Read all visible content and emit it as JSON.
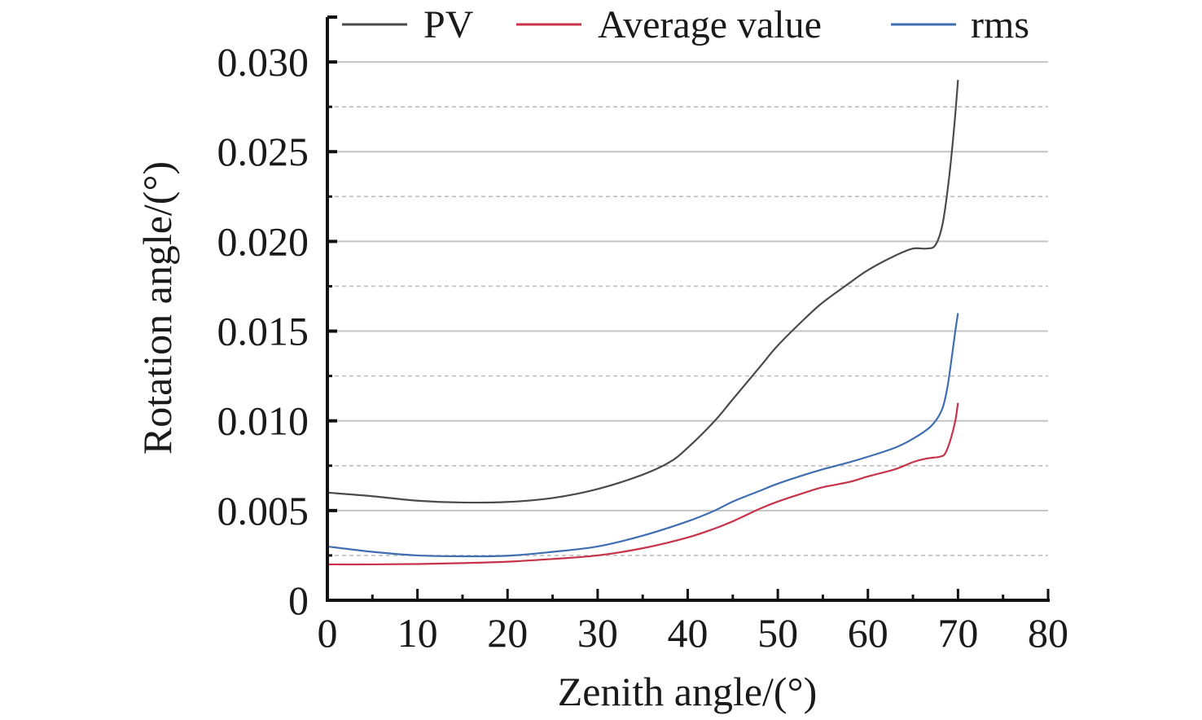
{
  "chart_data": {
    "type": "line",
    "title": "",
    "xlabel": "Zenith angle/(°)",
    "ylabel": "Rotation angle/(°)",
    "xlim": [
      0,
      80
    ],
    "ylim": [
      0,
      0.0325
    ],
    "xticks": [
      0,
      10,
      20,
      30,
      40,
      50,
      60,
      70,
      80
    ],
    "xtick_labels": [
      "0",
      "10",
      "20",
      "30",
      "40",
      "50",
      "60",
      "70",
      "80"
    ],
    "yticks": [
      0,
      0.005,
      0.01,
      0.015,
      0.02,
      0.025,
      0.03
    ],
    "ytick_labels": [
      "0",
      "0.005",
      "0.010",
      "0.015",
      "0.020",
      "0.025",
      "0.030"
    ],
    "y_minor_gridlines": [
      0.0025,
      0.0075,
      0.0125,
      0.0175,
      0.0225,
      0.0275
    ],
    "grid": true,
    "legend_position": "top",
    "series": [
      {
        "name": "PV",
        "color": "#4a4a4a",
        "x": [
          0,
          5,
          10,
          15,
          20,
          25,
          30,
          35,
          38,
          40,
          43,
          45,
          48,
          50,
          53,
          55,
          58,
          60,
          63,
          65,
          66.5,
          67.5,
          68.3,
          69,
          69.6,
          70
        ],
        "y": [
          0.006,
          0.0058,
          0.00555,
          0.00545,
          0.00548,
          0.0057,
          0.0062,
          0.007,
          0.0077,
          0.0085,
          0.01,
          0.0112,
          0.013,
          0.0142,
          0.0157,
          0.0166,
          0.0177,
          0.0184,
          0.0192,
          0.0196,
          0.0196,
          0.0198,
          0.021,
          0.0235,
          0.0265,
          0.029
        ]
      },
      {
        "name": "Average value",
        "color": "#c8324a",
        "x": [
          0,
          5,
          10,
          15,
          20,
          25,
          30,
          35,
          40,
          43,
          45,
          48,
          50,
          53,
          55,
          58,
          60,
          63,
          65,
          66.5,
          68,
          68.6,
          69.2,
          69.7,
          70
        ],
        "y": [
          0.002,
          0.002,
          0.00202,
          0.00207,
          0.00215,
          0.0023,
          0.0025,
          0.0029,
          0.0035,
          0.004,
          0.0044,
          0.0051,
          0.0055,
          0.006,
          0.0063,
          0.0066,
          0.0069,
          0.0073,
          0.0077,
          0.0079,
          0.008,
          0.0082,
          0.009,
          0.01,
          0.011
        ]
      },
      {
        "name": "rms",
        "color": "#3f6eb0",
        "x": [
          0,
          5,
          10,
          15,
          20,
          25,
          30,
          35,
          40,
          43,
          45,
          48,
          50,
          53,
          55,
          58,
          60,
          63,
          65,
          67,
          68.2,
          68.8,
          69.3,
          69.7,
          70
        ],
        "y": [
          0.003,
          0.0027,
          0.0025,
          0.00245,
          0.00248,
          0.0027,
          0.003,
          0.0036,
          0.0044,
          0.005,
          0.0055,
          0.0061,
          0.0065,
          0.007,
          0.0073,
          0.0077,
          0.008,
          0.0085,
          0.009,
          0.0097,
          0.0106,
          0.0118,
          0.0135,
          0.015,
          0.016
        ]
      }
    ]
  }
}
